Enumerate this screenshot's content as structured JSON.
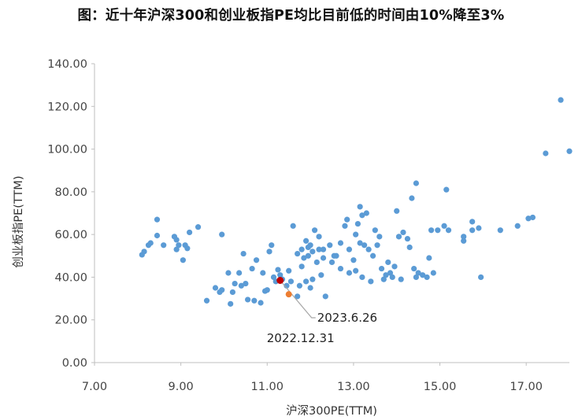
{
  "chart_data": {
    "type": "scatter",
    "title": "图：近十年沪深300和创业板指PE均比目前低的时间由10%降至3%",
    "xlabel": "沪深300PE(TTM)",
    "ylabel": "创业板指PE(TTM)",
    "xlim": [
      7,
      18
    ],
    "ylim": [
      0,
      140
    ],
    "x_ticks": [
      "7.00",
      "9.00",
      "11.00",
      "13.00",
      "15.00",
      "17.00"
    ],
    "y_ticks": [
      "0.00",
      "20.00",
      "40.00",
      "60.00",
      "80.00",
      "100.00",
      "120.00",
      "140.00"
    ],
    "grid": false,
    "colors": {
      "points": "#5b9bd5",
      "highlight_2023": "#c00000",
      "highlight_2022": "#ed7d31",
      "leader": "#a6a6a6"
    },
    "series": [
      {
        "points": [
          [
            8.1,
            50.5
          ],
          [
            8.15,
            52
          ],
          [
            8.25,
            55
          ],
          [
            8.3,
            56
          ],
          [
            8.45,
            59.5
          ],
          [
            8.45,
            67
          ],
          [
            8.6,
            55
          ],
          [
            8.85,
            59
          ],
          [
            8.9,
            53
          ],
          [
            8.9,
            57.5
          ],
          [
            8.95,
            55
          ],
          [
            9.05,
            48
          ],
          [
            9.1,
            55
          ],
          [
            9.15,
            53.5
          ],
          [
            9.2,
            61
          ],
          [
            9.4,
            63.5
          ],
          [
            9.6,
            29
          ],
          [
            9.8,
            35
          ],
          [
            9.9,
            33
          ],
          [
            9.95,
            34
          ],
          [
            9.95,
            60
          ],
          [
            10.1,
            42
          ],
          [
            10.15,
            27.5
          ],
          [
            10.2,
            33
          ],
          [
            10.25,
            37
          ],
          [
            10.35,
            42
          ],
          [
            10.4,
            36
          ],
          [
            10.45,
            51
          ],
          [
            10.5,
            37
          ],
          [
            10.55,
            29.5
          ],
          [
            10.65,
            44
          ],
          [
            10.7,
            29
          ],
          [
            10.75,
            48
          ],
          [
            10.85,
            28
          ],
          [
            10.9,
            42
          ],
          [
            10.95,
            33.5
          ],
          [
            11.0,
            34
          ],
          [
            11.05,
            52
          ],
          [
            11.1,
            55
          ],
          [
            11.15,
            40
          ],
          [
            11.2,
            38
          ],
          [
            11.25,
            43.5
          ],
          [
            11.3,
            41
          ],
          [
            11.35,
            39
          ],
          [
            11.45,
            36
          ],
          [
            11.5,
            43
          ],
          [
            11.55,
            38
          ],
          [
            11.6,
            64
          ],
          [
            11.7,
            31
          ],
          [
            11.7,
            51
          ],
          [
            11.75,
            36
          ],
          [
            11.8,
            45
          ],
          [
            11.8,
            53
          ],
          [
            11.85,
            49
          ],
          [
            11.9,
            57
          ],
          [
            11.9,
            38
          ],
          [
            11.95,
            54
          ],
          [
            11.95,
            50
          ],
          [
            12.0,
            55
          ],
          [
            12.0,
            35
          ],
          [
            12.05,
            39
          ],
          [
            12.05,
            52
          ],
          [
            12.1,
            62
          ],
          [
            12.15,
            47
          ],
          [
            12.2,
            59
          ],
          [
            12.2,
            53
          ],
          [
            12.25,
            41
          ],
          [
            12.3,
            49
          ],
          [
            12.3,
            53
          ],
          [
            12.35,
            31
          ],
          [
            12.45,
            55
          ],
          [
            12.5,
            47
          ],
          [
            12.55,
            50
          ],
          [
            12.6,
            50
          ],
          [
            12.7,
            44
          ],
          [
            12.7,
            56
          ],
          [
            12.8,
            64
          ],
          [
            12.85,
            67
          ],
          [
            12.9,
            53
          ],
          [
            12.9,
            42
          ],
          [
            13.0,
            48
          ],
          [
            13.05,
            60
          ],
          [
            13.05,
            43
          ],
          [
            13.1,
            65
          ],
          [
            13.15,
            73
          ],
          [
            13.15,
            56
          ],
          [
            13.2,
            69
          ],
          [
            13.2,
            40
          ],
          [
            13.25,
            55
          ],
          [
            13.3,
            70
          ],
          [
            13.35,
            53
          ],
          [
            13.4,
            38
          ],
          [
            13.45,
            50
          ],
          [
            13.5,
            62
          ],
          [
            13.55,
            55
          ],
          [
            13.6,
            59
          ],
          [
            13.65,
            44
          ],
          [
            13.7,
            39
          ],
          [
            13.75,
            41
          ],
          [
            13.8,
            47
          ],
          [
            13.85,
            42
          ],
          [
            13.9,
            40
          ],
          [
            13.95,
            45
          ],
          [
            14.0,
            71
          ],
          [
            14.05,
            59
          ],
          [
            14.1,
            39
          ],
          [
            14.15,
            61
          ],
          [
            14.25,
            58
          ],
          [
            14.3,
            54
          ],
          [
            14.35,
            77
          ],
          [
            14.4,
            44
          ],
          [
            14.45,
            84
          ],
          [
            14.45,
            40
          ],
          [
            14.5,
            42
          ],
          [
            14.6,
            41
          ],
          [
            14.7,
            40
          ],
          [
            14.75,
            49
          ],
          [
            14.8,
            62
          ],
          [
            14.85,
            42
          ],
          [
            14.95,
            62
          ],
          [
            15.1,
            64
          ],
          [
            15.15,
            81
          ],
          [
            15.2,
            62
          ],
          [
            15.55,
            59
          ],
          [
            15.55,
            57
          ],
          [
            15.75,
            66
          ],
          [
            15.75,
            62
          ],
          [
            15.9,
            63
          ],
          [
            15.95,
            40
          ],
          [
            16.4,
            62
          ],
          [
            16.8,
            64
          ],
          [
            17.05,
            67.5
          ],
          [
            17.15,
            68
          ],
          [
            17.45,
            98
          ],
          [
            17.8,
            123
          ],
          [
            18.0,
            99
          ]
        ]
      }
    ],
    "highlights": [
      {
        "label": "2023.6.26",
        "x": 11.3,
        "y": 38.5
      },
      {
        "label": "2022.12.31",
        "x": 11.5,
        "y": 32
      }
    ]
  }
}
